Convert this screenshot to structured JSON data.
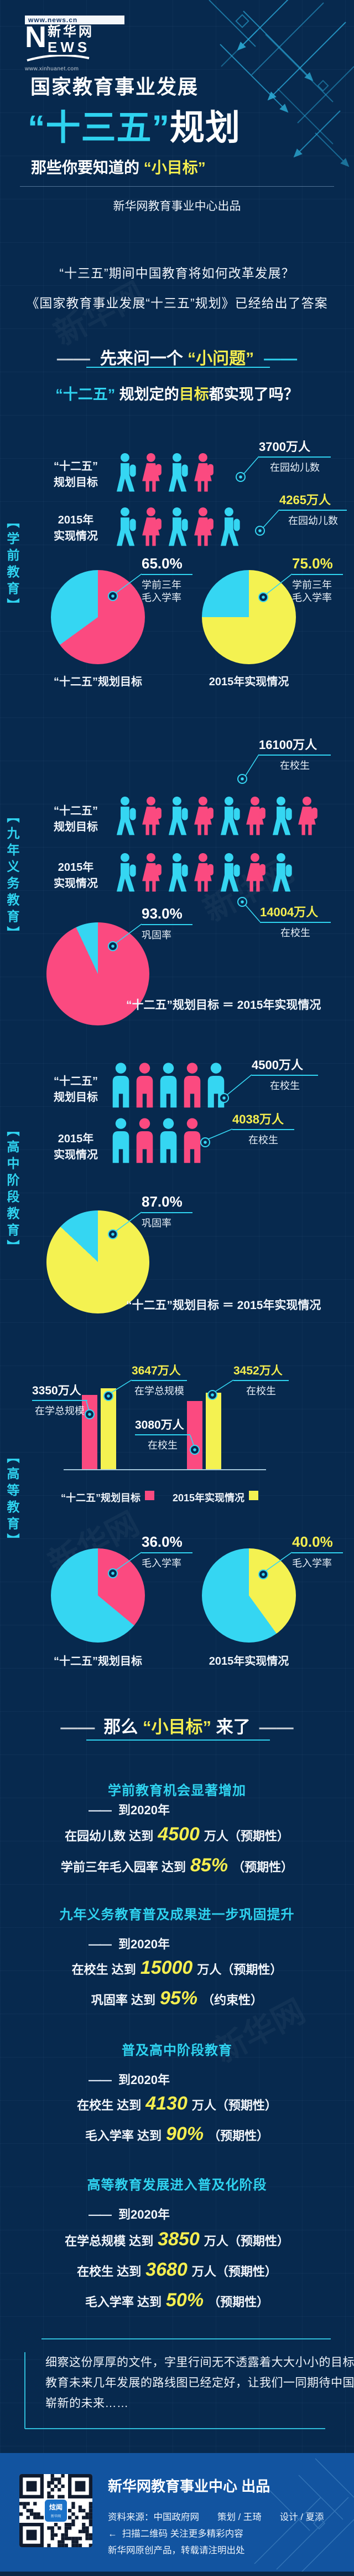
{
  "palette": {
    "pink": "#fb4a80",
    "cyan": "#35d6f2",
    "yellow": "#f4f251",
    "accent_text": "#2fd3f0",
    "yellow_text": "#f5ee4f",
    "bg": "#07294e",
    "footer_bg": "#1254a0",
    "qr_dark": "#101b2e",
    "qr_logo_blue": "#1b72c8"
  },
  "logo": {
    "line1": "www.news.cn",
    "n": "N",
    "cn": "新华网",
    "ews": "EWS",
    "line2": "www.xinhuanet.com"
  },
  "header": {
    "kicker": "国家教育事业发展",
    "title_accent": "“十三五”",
    "title_rest": "规划",
    "sub_prefix": "那些你要知道的",
    "sub_accent": "“小目标”",
    "byline": "新华网教育事业中心出品"
  },
  "intro": {
    "line1": "“十三五”期间中国教育将如何改革发展？",
    "line2": "《国家教育事业发展“十三五”规划》已经给出了答案"
  },
  "ask": {
    "dash_left": "——",
    "prefix": "先来问一个 ",
    "accent": "“小问题”",
    "dash_right": "——",
    "q_accent": "“十二五”",
    "q_mid": " 规划定的",
    "q_hl": "目标",
    "q_tail": "都实现了吗？"
  },
  "row_label_target": {
    "l1": "“十二五”",
    "l2": "规划目标"
  },
  "row_label_actual": {
    "l1": "2015年",
    "l2": "实现情况"
  },
  "pie_bottom_labels": {
    "target": "“十二五”规划目标",
    "actual": "2015年实现情况"
  },
  "sections": {
    "preschool": {
      "name": "【学前教育】",
      "target_num": "3700万人",
      "target_sub": "在园幼儿数",
      "actual_num": "4265万人",
      "actual_sub": "在园幼儿数",
      "pie_target": {
        "pct": "65.0%",
        "sub1": "学前三年",
        "sub2": "毛入学率"
      },
      "pie_actual": {
        "pct": "75.0%",
        "sub1": "学前三年",
        "sub2": "毛入学率"
      }
    },
    "nine_year": {
      "name": "【九年义务教育】",
      "target_num": "16100万人",
      "target_sub": "在校生",
      "actual_num": "14004万人",
      "actual_sub": "在校生",
      "pie": {
        "pct": "93.0%",
        "sub": "巩固率"
      },
      "equals": "“十二五”规划目标 ＝ 2015年实现情况"
    },
    "high_school": {
      "name": "【高中阶段教育】",
      "target_num": "4500万人",
      "target_sub": "在校生",
      "actual_num": "4038万人",
      "actual_sub": "在校生",
      "pie": {
        "pct": "87.0%",
        "sub": "巩固率"
      },
      "equals": "“十二五”规划目标 ＝ 2015年实现情况"
    },
    "higher": {
      "name": "【高等教育】",
      "bar_callouts": [
        {
          "num": "3350万人",
          "sub": "在学总规模"
        },
        {
          "num": "3647万人",
          "sub": "在学总规模"
        },
        {
          "num": "3080万人",
          "sub": "在校生"
        },
        {
          "num": "3452万人",
          "sub": "在校生"
        }
      ],
      "legend_target": "“十二五”规划目标",
      "legend_actual": "2015年实现情况",
      "pie_target": {
        "pct": "36.0%",
        "sub": "毛入学率"
      },
      "pie_actual": {
        "pct": "40.0%",
        "sub": "毛入学率"
      }
    }
  },
  "goals_header": {
    "dash_left": "——",
    "prefix": "那么 ",
    "accent": "“小目标”",
    "tail": " 来了",
    "dash_right": "——"
  },
  "goals": [
    {
      "title": "学前教育机会显著增加",
      "when": "到2020年",
      "items": [
        {
          "pre": "在园幼儿数 达到",
          "val": "4500",
          "suf": "万人（预期性）"
        },
        {
          "pre": "学前三年毛入园率 达到",
          "val": "85%",
          "suf": "（预期性）"
        }
      ]
    },
    {
      "title": "九年义务教育普及成果进一步巩固提升",
      "when": "到2020年",
      "items": [
        {
          "pre": "在校生 达到",
          "val": "15000",
          "suf": "万人（预期性）"
        },
        {
          "pre": "巩固率 达到",
          "val": "95%",
          "suf": "（约束性）"
        }
      ]
    },
    {
      "title": "普及高中阶段教育",
      "when": "到2020年",
      "items": [
        {
          "pre": "在校生 达到",
          "val": "4130",
          "suf": "万人（预期性）"
        },
        {
          "pre": "毛入学率 达到",
          "val": "90%",
          "suf": "（预期性）"
        }
      ]
    },
    {
      "title": "高等教育发展进入普及化阶段",
      "when": "到2020年",
      "items": [
        {
          "pre": "在学总规模 达到",
          "val": "3850",
          "suf": "万人（预期性）"
        },
        {
          "pre": "在校生 达到",
          "val": "3680",
          "suf": "万人（预期性）"
        },
        {
          "pre": "毛入学率 达到",
          "val": "50%",
          "suf": "（预期性）"
        }
      ]
    }
  ],
  "outro": {
    "line1": "细察这份厚厚的文件，字里行间无不透露着大大小小的目标，",
    "line2": "教育未来几年发展的路线图已经定好，让我们一同期待中国教育",
    "line3": "崭新的未来……"
  },
  "footer": {
    "title": "新华网教育事业中心 出品",
    "credits": "资料来源：中国政府网　　策划 / 王琦　　设计 / 夏添",
    "arrow": "←",
    "scan": "扫描二维码 关注更多精彩内容",
    "note": "新华网原创产品，转载请注明出处",
    "qr_app": "炫闻",
    "qr_sub": "新华网"
  },
  "rows": {
    "preschool_target": {
      "style": "walk",
      "colors": [
        "cyan",
        "pink",
        "cyan",
        "pink"
      ]
    },
    "preschool_actual": {
      "style": "walk",
      "colors": [
        "cyan",
        "pink",
        "cyan",
        "pink",
        "cyan"
      ]
    },
    "nine_target": {
      "style": "walk",
      "colors": [
        "cyan",
        "pink",
        "cyan",
        "pink",
        "cyan",
        "pink",
        "cyan",
        "pink"
      ]
    },
    "nine_actual": {
      "style": "walk",
      "colors": [
        "cyan",
        "pink",
        "cyan",
        "pink",
        "cyan",
        "pink",
        "cyan"
      ]
    },
    "hs_target": {
      "style": "stand",
      "colors": [
        "cyan",
        "pink",
        "cyan",
        "pink",
        "cyan"
      ]
    },
    "hs_actual": {
      "style": "stand",
      "colors": [
        "cyan",
        "pink",
        "cyan",
        "pink"
      ]
    }
  },
  "pies": {
    "preschool_target": {
      "pct": 65,
      "color": "pink"
    },
    "preschool_actual": {
      "pct": 75,
      "color": "yellow"
    },
    "nine": {
      "pct": 93,
      "color": "pink"
    },
    "hs": {
      "pct": 87,
      "color": "yellow"
    },
    "higher_target": {
      "pct": 36,
      "color": "pink"
    },
    "higher_actual": {
      "pct": 40,
      "color": "yellow"
    }
  },
  "bars": [
    {
      "value": 3350,
      "color": "pink"
    },
    {
      "value": 3647,
      "color": "yellow"
    },
    {
      "value": 3080,
      "color": "pink"
    },
    {
      "value": 3452,
      "color": "yellow"
    }
  ],
  "chart_data": [
    {
      "type": "bar",
      "subtype": "pictogram",
      "section": "学前教育",
      "title": "在园幼儿数",
      "categories": [
        "“十二五”规划目标",
        "2015年实现情况"
      ],
      "values": [
        3700,
        4265
      ],
      "unit": "万人",
      "icon_counts": [
        4,
        5
      ]
    },
    {
      "type": "pie",
      "section": "学前教育",
      "title": "学前三年毛入学率",
      "series": [
        {
          "name": "“十二五”规划目标",
          "value": 65.0
        },
        {
          "name": "2015年实现情况",
          "value": 75.0
        }
      ],
      "unit": "%"
    },
    {
      "type": "bar",
      "subtype": "pictogram",
      "section": "九年义务教育",
      "title": "在校生",
      "categories": [
        "“十二五”规划目标",
        "2015年实现情况"
      ],
      "values": [
        16100,
        14004
      ],
      "unit": "万人",
      "icon_counts": [
        8,
        7
      ]
    },
    {
      "type": "pie",
      "section": "九年义务教育",
      "title": "巩固率（“十二五”规划目标 ＝ 2015年实现情况）",
      "series": [
        {
          "name": "巩固率",
          "value": 93.0
        }
      ],
      "unit": "%"
    },
    {
      "type": "bar",
      "subtype": "pictogram",
      "section": "高中阶段教育",
      "title": "在校生",
      "categories": [
        "“十二五”规划目标",
        "2015年实现情况"
      ],
      "values": [
        4500,
        4038
      ],
      "unit": "万人",
      "icon_counts": [
        5,
        4
      ]
    },
    {
      "type": "pie",
      "section": "高中阶段教育",
      "title": "巩固率（“十二五”规划目标 ＝ 2015年实现情况）",
      "series": [
        {
          "name": "巩固率",
          "value": 87.0
        }
      ],
      "unit": "%"
    },
    {
      "type": "bar",
      "section": "高等教育",
      "categories": [
        "在学总规模",
        "在校生"
      ],
      "series": [
        {
          "name": "“十二五”规划目标",
          "values": [
            3350,
            3080
          ]
        },
        {
          "name": "2015年实现情况",
          "values": [
            3647,
            3452
          ]
        }
      ],
      "unit": "万人",
      "legend_position": "bottom"
    },
    {
      "type": "pie",
      "section": "高等教育",
      "title": "毛入学率",
      "series": [
        {
          "name": "“十二五”规划目标",
          "value": 36.0
        },
        {
          "name": "2015年实现情况",
          "value": 40.0
        }
      ],
      "unit": "%"
    }
  ]
}
